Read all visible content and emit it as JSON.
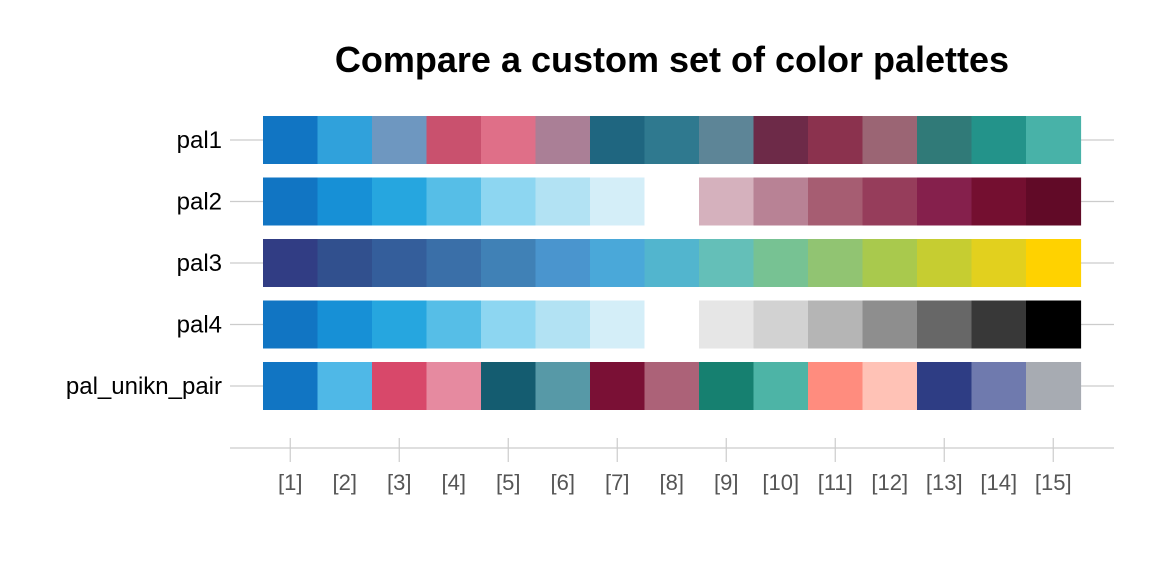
{
  "chart_data": {
    "type": "heatmap",
    "title": "Compare a custom set of color palettes",
    "xlabel": "",
    "ylabel": "",
    "categories": [
      "[1]",
      "[2]",
      "[3]",
      "[4]",
      "[5]",
      "[6]",
      "[7]",
      "[8]",
      "[9]",
      "[10]",
      "[11]",
      "[12]",
      "[13]",
      "[14]",
      "[15]"
    ],
    "series": [
      {
        "name": "pal1",
        "values": [
          "#1175C3",
          "#30A1DB",
          "#6E97C0",
          "#C9516E",
          "#DF6F88",
          "#AA7F96",
          "#1F6680",
          "#2F798F",
          "#5D8597",
          "#6D2A48",
          "#8B324E",
          "#9B6574",
          "#307A78",
          "#23938A",
          "#48B2A8"
        ]
      },
      {
        "name": "pal2",
        "values": [
          "#1175C3",
          "#1790D6",
          "#26A6DF",
          "#56BEE7",
          "#8DD6F1",
          "#B2E2F3",
          "#D4EEF8",
          "#FFFFFF",
          "#D5B1BD",
          "#B88295",
          "#A65D72",
          "#963D5B",
          "#85204C",
          "#740F30",
          "#610A27"
        ]
      },
      {
        "name": "pal3",
        "values": [
          "#313D84",
          "#31508E",
          "#345E9B",
          "#3A6FA8",
          "#4081B6",
          "#4A95CE",
          "#4AA8D9",
          "#52B5CE",
          "#64BFB8",
          "#77C293",
          "#91C472",
          "#A9C94D",
          "#C6CD31",
          "#E2D01E",
          "#FFD200"
        ]
      },
      {
        "name": "pal4",
        "values": [
          "#1175C3",
          "#1790D6",
          "#26A6DF",
          "#56BEE7",
          "#8DD6F1",
          "#B2E2F3",
          "#D4EEF8",
          "#FFFFFF",
          "#E6E6E6",
          "#D2D2D2",
          "#B5B5B5",
          "#8E8E8E",
          "#676767",
          "#383838",
          "#000000"
        ]
      },
      {
        "name": "pal_unikn_pair",
        "values": [
          "#1175C3",
          "#4FB8E7",
          "#D8486A",
          "#E68AA0",
          "#145C70",
          "#5799A7",
          "#7A1035",
          "#AC6278",
          "#168070",
          "#4DB4A6",
          "#FF8C7E",
          "#FFC2B6",
          "#2E3D84",
          "#6F7AAE",
          "#A7ABB2"
        ]
      }
    ]
  }
}
